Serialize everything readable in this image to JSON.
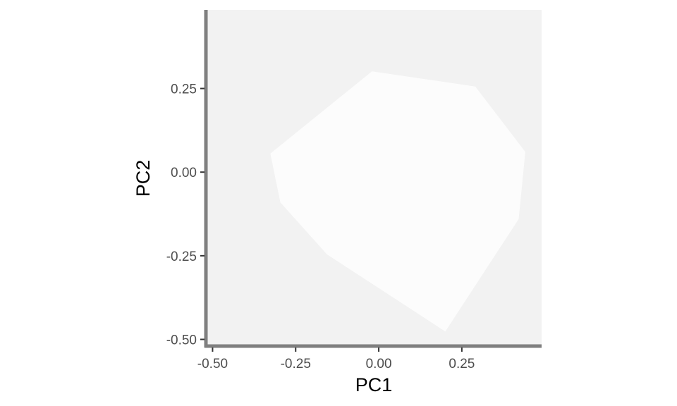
{
  "chart_data": {
    "type": "polygon",
    "title": "",
    "xlabel": "PC1",
    "ylabel": "PC2",
    "xlim": [
      -0.52,
      0.49
    ],
    "ylim": [
      -0.52,
      0.485
    ],
    "x_ticks": [
      -0.5,
      -0.25,
      0.0,
      0.25
    ],
    "x_tick_labels": [
      "-0.50",
      "-0.25",
      "0.00",
      "0.25"
    ],
    "y_ticks": [
      -0.5,
      -0.25,
      0.0,
      0.25
    ],
    "y_tick_labels": [
      "-0.50",
      "-0.25",
      "0.00",
      "0.25"
    ],
    "grid": false,
    "legend": "none",
    "polygon": {
      "points": [
        {
          "x": -0.02,
          "y": 0.3
        },
        {
          "x": 0.29,
          "y": 0.255
        },
        {
          "x": 0.44,
          "y": 0.06
        },
        {
          "x": 0.42,
          "y": -0.14
        },
        {
          "x": 0.2,
          "y": -0.475
        },
        {
          "x": -0.155,
          "y": -0.245
        },
        {
          "x": -0.295,
          "y": -0.09
        },
        {
          "x": -0.325,
          "y": 0.055
        }
      ]
    },
    "colors": {
      "panel_background": "#f2f2f2",
      "polygon_fill": "#fcfcfc",
      "axis_line": "#7f7f7f",
      "tick_mark": "#333333",
      "tick_label": "#4d4d4d",
      "axis_title": "#000000"
    }
  }
}
